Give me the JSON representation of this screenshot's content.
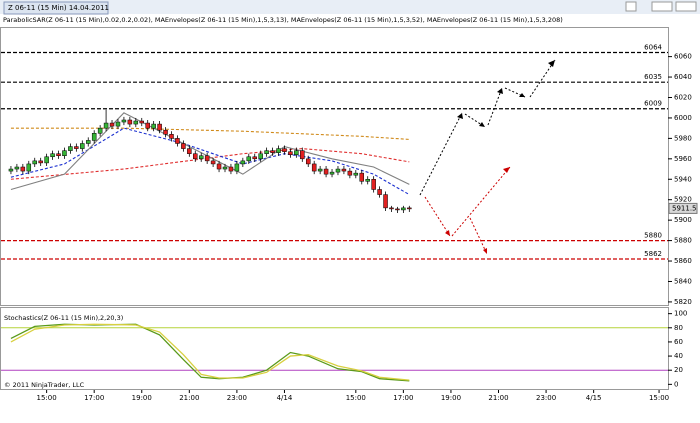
{
  "window_title": "Z 06-11 (15 Min)  14.04.2011",
  "chart_data": [
    {
      "type": "candlestick",
      "title": "ParabolicSAR(Z 06-11 (15 Min),0.02,0.2,0.02), MAEnvelopes(Z 06-11 (15 Min),1,5,3,13), MAEnvelopes(Z 06-11 (15 Min),1,5,3,52), MAEnvelopes(Z 06-11 (15 Min),1,5,3,208)",
      "x": [
        1,
        2,
        3,
        4,
        5,
        6,
        7,
        8,
        9,
        10,
        11,
        12,
        13,
        14,
        15,
        16,
        17,
        18,
        19,
        20,
        21,
        22,
        23,
        24,
        25,
        26,
        27,
        28,
        29,
        30,
        31,
        32,
        33,
        34,
        35,
        36,
        37,
        38,
        39,
        40,
        41,
        42,
        43,
        44,
        45,
        46,
        47,
        48,
        49,
        50,
        51,
        52,
        53,
        54,
        55,
        56,
        57,
        58,
        59,
        60,
        61,
        62,
        63,
        64,
        65,
        66,
        67,
        68
      ],
      "open": [
        5948,
        5950,
        5952,
        5948,
        5955,
        5958,
        5956,
        5962,
        5965,
        5963,
        5968,
        5972,
        5970,
        5975,
        5978,
        5985,
        5990,
        5995,
        5992,
        5996,
        5998,
        5994,
        5997,
        5995,
        5990,
        5994,
        5988,
        5984,
        5980,
        5975,
        5970,
        5965,
        5960,
        5963,
        5958,
        5955,
        5950,
        5952,
        5948,
        5955,
        5958,
        5962,
        5960,
        5965,
        5968,
        5966,
        5970,
        5967,
        5964,
        5968,
        5960,
        5955,
        5948,
        5950,
        5945,
        5947,
        5950,
        5948,
        5944,
        5946,
        5938,
        5940,
        5930,
        5925,
        5912,
        5911,
        5910,
        5912
      ],
      "high": [
        5953,
        5955,
        5955,
        5958,
        5961,
        5961,
        5965,
        5968,
        5968,
        5971,
        5975,
        5975,
        5978,
        5981,
        5988,
        5993,
        6008,
        5998,
        5999,
        6001,
        6001,
        6000,
        6000,
        5998,
        5997,
        5997,
        5991,
        5987,
        5983,
        5978,
        5973,
        5968,
        5966,
        5966,
        5961,
        5958,
        5955,
        5955,
        5958,
        5961,
        5965,
        5965,
        5968,
        5971,
        5971,
        5973,
        5973,
        5970,
        5971,
        5971,
        5963,
        5958,
        5953,
        5953,
        5950,
        5953,
        5953,
        5951,
        5949,
        5949,
        5943,
        5943,
        5933,
        5928,
        5914,
        5913,
        5914,
        5914
      ],
      "low": [
        5945,
        5947,
        5945,
        5945,
        5952,
        5953,
        5953,
        5959,
        5960,
        5960,
        5965,
        5967,
        5967,
        5972,
        5975,
        5982,
        5987,
        5989,
        5989,
        5993,
        5991,
        5991,
        5992,
        5987,
        5987,
        5985,
        5981,
        5977,
        5972,
        5967,
        5962,
        5957,
        5957,
        5955,
        5952,
        5947,
        5947,
        5945,
        5945,
        5952,
        5955,
        5957,
        5957,
        5962,
        5963,
        5963,
        5964,
        5961,
        5961,
        5957,
        5952,
        5945,
        5945,
        5942,
        5942,
        5944,
        5945,
        5941,
        5941,
        5935,
        5935,
        5927,
        5922,
        5909,
        5908,
        5907,
        5907,
        5908
      ],
      "close": [
        5950,
        5952,
        5948,
        5955,
        5958,
        5956,
        5962,
        5965,
        5963,
        5968,
        5972,
        5970,
        5975,
        5978,
        5985,
        5990,
        5995,
        5992,
        5996,
        5998,
        5994,
        5997,
        5995,
        5990,
        5994,
        5988,
        5984,
        5980,
        5975,
        5970,
        5965,
        5960,
        5963,
        5958,
        5955,
        5950,
        5952,
        5948,
        5955,
        5958,
        5962,
        5960,
        5965,
        5968,
        5966,
        5970,
        5967,
        5964,
        5968,
        5960,
        5955,
        5948,
        5950,
        5945,
        5947,
        5950,
        5948,
        5944,
        5946,
        5938,
        5940,
        5930,
        5925,
        5912,
        5911,
        5910,
        5912,
        5911
      ],
      "up_color": "#35b335",
      "down_color": "#e02020",
      "overlays": [
        {
          "color": "#d08a1a",
          "dash": true,
          "x": [
            1,
            20,
            40,
            60,
            68
          ],
          "values": [
            5990,
            5990,
            5987,
            5982,
            5979
          ]
        },
        {
          "color": "#e03030",
          "dash": true,
          "x": [
            1,
            20,
            40,
            50,
            60,
            68
          ],
          "values": [
            5940,
            5950,
            5965,
            5970,
            5965,
            5957
          ]
        },
        {
          "color": "#1a2fd0",
          "dash": true,
          "x": [
            1,
            10,
            20,
            30,
            40,
            47,
            55,
            62,
            68
          ],
          "values": [
            5942,
            5955,
            5990,
            5975,
            5955,
            5965,
            5958,
            5945,
            5925
          ]
        },
        {
          "color": "#808080",
          "dash": false,
          "x": [
            1,
            10,
            20,
            30,
            40,
            47,
            55,
            62,
            68
          ],
          "values": [
            5930,
            5945,
            6005,
            5975,
            5945,
            5972,
            5960,
            5952,
            5935
          ]
        }
      ],
      "levels": [
        {
          "value": 6064,
          "color": "#000000"
        },
        {
          "value": 6035,
          "color": "#000000"
        },
        {
          "value": 6009,
          "color": "#000000"
        },
        {
          "value": 5880,
          "color": "#cc0000"
        },
        {
          "value": 5862,
          "color": "#cc0000"
        }
      ],
      "last_price": 5911.5,
      "xlim": [
        0,
        111
      ],
      "xticks": [
        {
          "value": 7,
          "label": "15:00"
        },
        {
          "value": 15,
          "label": "17:00"
        },
        {
          "value": 23,
          "label": "19:00"
        },
        {
          "value": 31,
          "label": "21:00"
        },
        {
          "value": 39,
          "label": "23:00"
        },
        {
          "value": 47,
          "label": "4/14"
        },
        {
          "value": 59,
          "label": "15:00"
        },
        {
          "value": 67,
          "label": "17:00"
        },
        {
          "value": 75,
          "label": "19:00"
        },
        {
          "value": 83,
          "label": "21:00"
        },
        {
          "value": 91,
          "label": "23:00"
        },
        {
          "value": 99,
          "label": "4/15"
        },
        {
          "value": 110,
          "label": "15:00"
        }
      ],
      "ylim": [
        5816,
        6088
      ],
      "yticks": [
        6060,
        6040,
        6020,
        6000,
        5980,
        5960,
        5940,
        5920,
        5900,
        5880,
        5860,
        5840,
        5820
      ]
    },
    {
      "type": "line",
      "title": "Stochastics(Z 06-11 (15 Min),2,20,3)",
      "footer": "© 2011 NinjaTrader, LLC",
      "series": [
        {
          "color": "#5a9a1a",
          "x": [
            1,
            5,
            10,
            15,
            22,
            26,
            30,
            33,
            36,
            40,
            44,
            48,
            51,
            56,
            60,
            63,
            68
          ],
          "values": [
            65,
            82,
            85,
            84,
            85,
            70,
            35,
            10,
            8,
            10,
            20,
            45,
            40,
            22,
            18,
            8,
            5
          ]
        },
        {
          "color": "#d8d040",
          "x": [
            1,
            5,
            10,
            15,
            22,
            26,
            30,
            33,
            36,
            40,
            44,
            48,
            51,
            56,
            60,
            63,
            68
          ],
          "values": [
            60,
            78,
            84,
            85,
            84,
            74,
            42,
            14,
            9,
            9,
            17,
            40,
            42,
            26,
            19,
            10,
            6
          ]
        }
      ],
      "levels": [
        {
          "value": 80,
          "color": "#b5d33a"
        },
        {
          "value": 20,
          "color": "#b040c0"
        }
      ],
      "xlim": [
        0,
        111
      ],
      "ylim": [
        -8,
        108
      ],
      "yticks": [
        100,
        80,
        60,
        40,
        20,
        0
      ]
    }
  ]
}
